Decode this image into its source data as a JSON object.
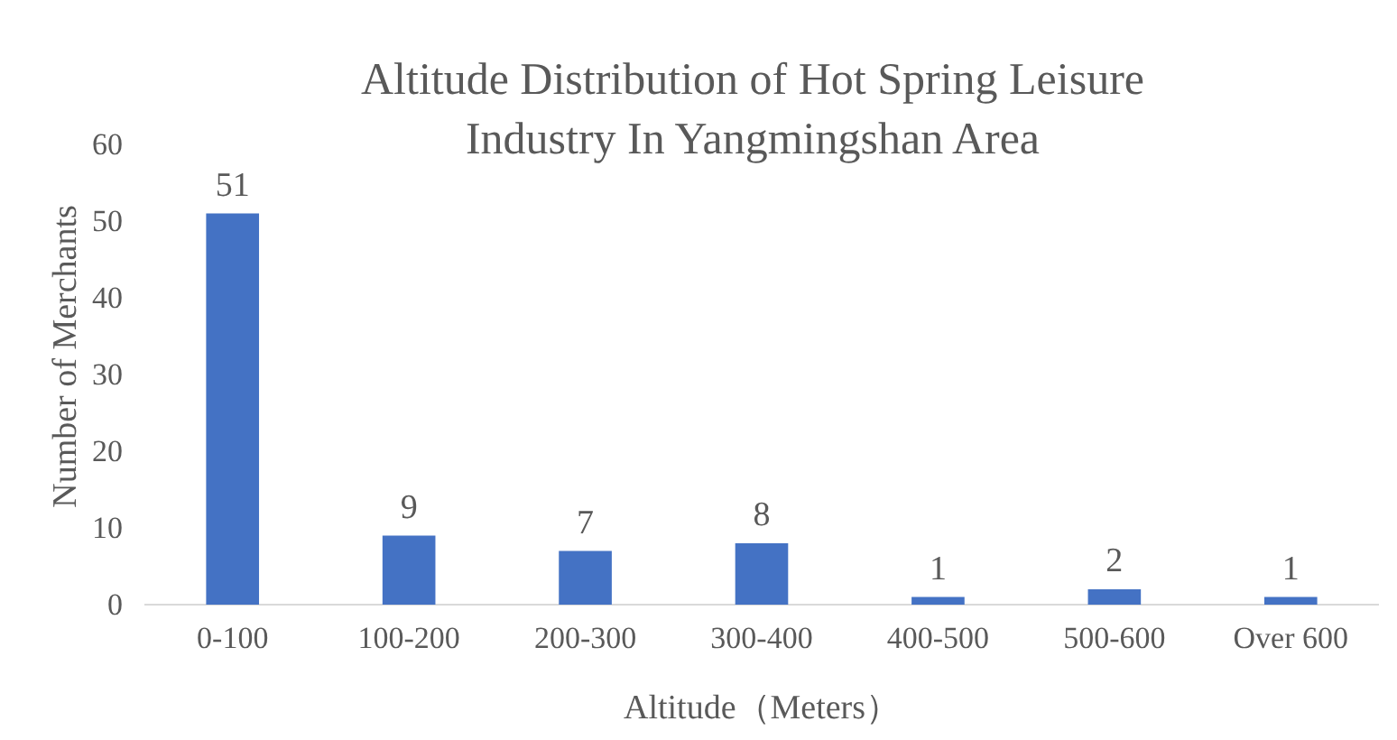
{
  "chart_data": {
    "type": "bar",
    "title": "Altitude Distribution of Hot Spring Leisure Industry In Yangmingshan Area",
    "xlabel": "Altitude（Meters）",
    "ylabel": "Number of Merchants",
    "categories": [
      "0-100",
      "100-200",
      "200-300",
      "300-400",
      "400-500",
      "500-600",
      "Over 600"
    ],
    "values": [
      51,
      9,
      7,
      8,
      1,
      2,
      1
    ],
    "color": "#4472c4",
    "ylim": [
      0,
      60
    ],
    "yticks": [
      0,
      10,
      20,
      30,
      40,
      50,
      60
    ],
    "grid": false,
    "data_labels": true
  }
}
